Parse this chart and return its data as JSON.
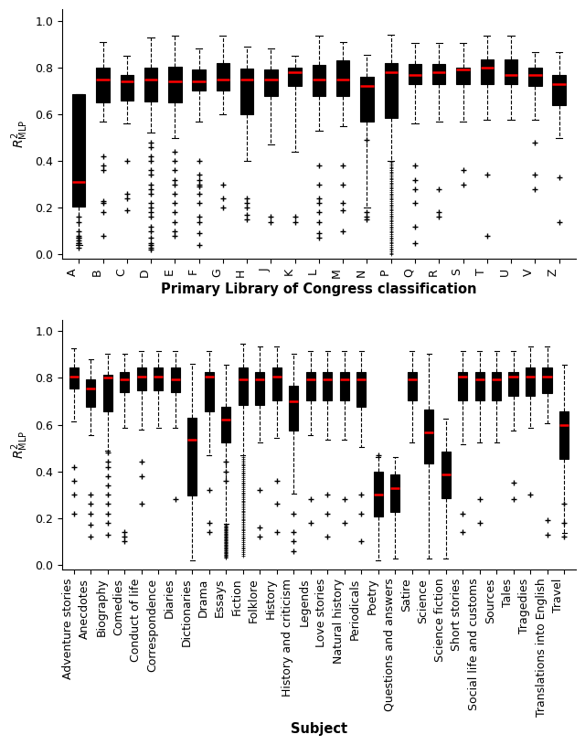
{
  "top_categories": [
    "A",
    "B",
    "C",
    "D",
    "E",
    "F",
    "G",
    "H",
    "J",
    "K",
    "L",
    "M",
    "N",
    "P",
    "Q",
    "R",
    "S",
    "T",
    "U",
    "V",
    "Z"
  ],
  "top_xlabel": "Primary Library of Congress classification",
  "top_ylabel": "$R^2_{\\mathrm{MLP}}$",
  "bottom_categories": [
    "Adventure stories",
    "Anecdotes",
    "Biography",
    "Comedies",
    "Conduct of life",
    "Correspondence",
    "Diaries",
    "Dictionaries",
    "Drama",
    "Essays",
    "Fiction",
    "Folklore",
    "History",
    "History and criticism",
    "Legends",
    "Love stories",
    "Natural history",
    "Periodicals",
    "Poetry",
    "Questions and answers",
    "Satire",
    "Science",
    "Science fiction",
    "Short stories",
    "Social life and customs",
    "Sources",
    "Tales",
    "Tragedies",
    "Translations into English",
    "Travel"
  ],
  "bottom_xlabel": "Subject",
  "bottom_ylabel": "$R^2_{\\mathrm{MLP}}$",
  "top_stats": [
    {
      "med": 0.31,
      "q1": 0.205,
      "q3": 0.685,
      "whislo": 0.04,
      "whishi": 0.685,
      "fliers": [
        0.03,
        0.05,
        0.06,
        0.07,
        0.08,
        0.07,
        0.05,
        0.1,
        0.14,
        0.16
      ]
    },
    {
      "med": 0.75,
      "q1": 0.65,
      "q3": 0.8,
      "whislo": 0.57,
      "whishi": 0.91,
      "fliers": [
        0.36,
        0.38,
        0.42,
        0.22,
        0.23,
        0.18,
        0.08
      ]
    },
    {
      "med": 0.74,
      "q1": 0.66,
      "q3": 0.77,
      "whislo": 0.56,
      "whishi": 0.85,
      "fliers": [
        0.4,
        0.26,
        0.19,
        0.24
      ]
    },
    {
      "med": 0.75,
      "q1": 0.655,
      "q3": 0.8,
      "whislo": 0.52,
      "whishi": 0.93,
      "fliers": [
        0.48,
        0.46,
        0.42,
        0.4,
        0.36,
        0.34,
        0.3,
        0.28,
        0.26,
        0.22,
        0.2,
        0.18,
        0.16,
        0.12,
        0.1,
        0.07,
        0.05,
        0.04,
        0.03,
        0.02
      ]
    },
    {
      "med": 0.74,
      "q1": 0.65,
      "q3": 0.805,
      "whislo": 0.5,
      "whishi": 0.935,
      "fliers": [
        0.44,
        0.4,
        0.36,
        0.32,
        0.3,
        0.26,
        0.22,
        0.18,
        0.14,
        0.1,
        0.08
      ]
    },
    {
      "med": 0.74,
      "q1": 0.7,
      "q3": 0.79,
      "whislo": 0.57,
      "whishi": 0.88,
      "fliers": [
        0.4,
        0.34,
        0.32,
        0.3,
        0.29,
        0.26,
        0.22,
        0.16,
        0.14,
        0.09,
        0.04
      ]
    },
    {
      "med": 0.75,
      "q1": 0.7,
      "q3": 0.82,
      "whislo": 0.6,
      "whishi": 0.935,
      "fliers": [
        0.3,
        0.24,
        0.2
      ]
    },
    {
      "med": 0.75,
      "q1": 0.6,
      "q3": 0.795,
      "whislo": 0.4,
      "whishi": 0.89,
      "fliers": [
        0.24,
        0.22,
        0.2,
        0.17,
        0.15
      ]
    },
    {
      "med": 0.75,
      "q1": 0.68,
      "q3": 0.79,
      "whislo": 0.47,
      "whishi": 0.88,
      "fliers": [
        0.16,
        0.14
      ]
    },
    {
      "med": 0.78,
      "q1": 0.72,
      "q3": 0.8,
      "whislo": 0.44,
      "whishi": 0.85,
      "fliers": [
        0.16,
        0.14
      ]
    },
    {
      "med": 0.75,
      "q1": 0.68,
      "q3": 0.81,
      "whislo": 0.53,
      "whishi": 0.935,
      "fliers": [
        0.38,
        0.3,
        0.24,
        0.22,
        0.18,
        0.14,
        0.09,
        0.07
      ]
    },
    {
      "med": 0.75,
      "q1": 0.68,
      "q3": 0.83,
      "whislo": 0.55,
      "whishi": 0.91,
      "fliers": [
        0.38,
        0.3,
        0.22,
        0.19,
        0.1
      ]
    },
    {
      "med": 0.72,
      "q1": 0.57,
      "q3": 0.76,
      "whislo": 0.2,
      "whishi": 0.855,
      "fliers": [
        0.18,
        0.16,
        0.15,
        0.49
      ]
    },
    {
      "med": 0.78,
      "q1": 0.585,
      "q3": 0.82,
      "whislo": 0.4,
      "whishi": 0.94,
      "fliers_dense": true,
      "fliers_min": 0.0,
      "fliers_max": 0.395,
      "fliers": []
    },
    {
      "med": 0.77,
      "q1": 0.73,
      "q3": 0.815,
      "whislo": 0.56,
      "whishi": 0.905,
      "fliers": [
        0.38,
        0.32,
        0.28,
        0.22,
        0.12,
        0.05
      ]
    },
    {
      "med": 0.78,
      "q1": 0.73,
      "q3": 0.815,
      "whislo": 0.57,
      "whishi": 0.905,
      "fliers": [
        0.28,
        0.18,
        0.16
      ]
    },
    {
      "med": 0.79,
      "q1": 0.73,
      "q3": 0.8,
      "whislo": 0.57,
      "whishi": 0.905,
      "fliers": [
        0.36,
        0.3
      ]
    },
    {
      "med": 0.8,
      "q1": 0.73,
      "q3": 0.835,
      "whislo": 0.575,
      "whishi": 0.935,
      "fliers": [
        0.34,
        0.08
      ]
    },
    {
      "med": 0.77,
      "q1": 0.73,
      "q3": 0.835,
      "whislo": 0.575,
      "whishi": 0.935,
      "fliers": []
    },
    {
      "med": 0.77,
      "q1": 0.72,
      "q3": 0.8,
      "whislo": 0.575,
      "whishi": 0.865,
      "fliers": [
        0.48,
        0.34,
        0.28
      ]
    },
    {
      "med": 0.73,
      "q1": 0.64,
      "q3": 0.77,
      "whislo": 0.5,
      "whishi": 0.865,
      "fliers": [
        0.33,
        0.14
      ]
    }
  ],
  "bottom_stats": [
    {
      "med": 0.805,
      "q1": 0.755,
      "q3": 0.845,
      "whislo": 0.615,
      "whishi": 0.925,
      "fliers": [
        0.42,
        0.36,
        0.3,
        0.22
      ]
    },
    {
      "med": 0.755,
      "q1": 0.675,
      "q3": 0.795,
      "whislo": 0.555,
      "whishi": 0.88,
      "fliers": [
        0.3,
        0.26,
        0.22,
        0.17,
        0.12
      ]
    },
    {
      "med": 0.8,
      "q1": 0.655,
      "q3": 0.815,
      "whislo": 0.49,
      "whishi": 0.905,
      "fliers": [
        0.48,
        0.44,
        0.42,
        0.38,
        0.34,
        0.3,
        0.26,
        0.22,
        0.18,
        0.13
      ]
    },
    {
      "med": 0.795,
      "q1": 0.74,
      "q3": 0.825,
      "whislo": 0.585,
      "whishi": 0.905,
      "fliers": [
        0.1,
        0.12,
        0.14
      ]
    },
    {
      "med": 0.805,
      "q1": 0.745,
      "q3": 0.845,
      "whislo": 0.58,
      "whishi": 0.915,
      "fliers": [
        0.44,
        0.38,
        0.26
      ]
    },
    {
      "med": 0.805,
      "q1": 0.745,
      "q3": 0.845,
      "whislo": 0.585,
      "whishi": 0.915,
      "fliers": []
    },
    {
      "med": 0.795,
      "q1": 0.74,
      "q3": 0.845,
      "whislo": 0.585,
      "whishi": 0.915,
      "fliers": [
        0.28
      ]
    },
    {
      "med": 0.535,
      "q1": 0.295,
      "q3": 0.63,
      "whislo": 0.02,
      "whishi": 0.86,
      "fliers": []
    },
    {
      "med": 0.805,
      "q1": 0.655,
      "q3": 0.825,
      "whislo": 0.47,
      "whishi": 0.915,
      "fliers": [
        0.32,
        0.18,
        0.14
      ]
    },
    {
      "med": 0.62,
      "q1": 0.525,
      "q3": 0.675,
      "whislo": 0.175,
      "whishi": 0.855,
      "fliers_dense": true,
      "fliers_min": 0.03,
      "fliers_max": 0.17,
      "fliers": [
        0.44,
        0.4,
        0.36
      ]
    },
    {
      "med": 0.795,
      "q1": 0.685,
      "q3": 0.845,
      "whislo": 0.47,
      "whishi": 0.945,
      "fliers_dense": true,
      "fliers_min": 0.04,
      "fliers_max": 0.46,
      "fliers": []
    },
    {
      "med": 0.795,
      "q1": 0.685,
      "q3": 0.825,
      "whislo": 0.525,
      "whishi": 0.935,
      "fliers": [
        0.32,
        0.16,
        0.12
      ]
    },
    {
      "med": 0.805,
      "q1": 0.705,
      "q3": 0.845,
      "whislo": 0.545,
      "whishi": 0.935,
      "fliers": [
        0.36,
        0.26,
        0.14
      ]
    },
    {
      "med": 0.7,
      "q1": 0.575,
      "q3": 0.765,
      "whislo": 0.305,
      "whishi": 0.905,
      "fliers": [
        0.22,
        0.14,
        0.1,
        0.06
      ]
    },
    {
      "med": 0.795,
      "q1": 0.705,
      "q3": 0.825,
      "whislo": 0.555,
      "whishi": 0.915,
      "fliers": [
        0.28,
        0.18
      ]
    },
    {
      "med": 0.795,
      "q1": 0.705,
      "q3": 0.825,
      "whislo": 0.535,
      "whishi": 0.915,
      "fliers": [
        0.3,
        0.22,
        0.12
      ]
    },
    {
      "med": 0.795,
      "q1": 0.705,
      "q3": 0.825,
      "whislo": 0.535,
      "whishi": 0.915,
      "fliers": [
        0.28,
        0.18
      ]
    },
    {
      "med": 0.795,
      "q1": 0.675,
      "q3": 0.825,
      "whislo": 0.505,
      "whishi": 0.915,
      "fliers": [
        0.3,
        0.22,
        0.1
      ]
    },
    {
      "med": 0.3,
      "q1": 0.205,
      "q3": 0.4,
      "whislo": 0.02,
      "whishi": 0.46,
      "fliers": [
        0.47
      ]
    },
    {
      "med": 0.33,
      "q1": 0.225,
      "q3": 0.385,
      "whislo": 0.025,
      "whishi": 0.46,
      "fliers": []
    },
    {
      "med": 0.795,
      "q1": 0.705,
      "q3": 0.825,
      "whislo": 0.525,
      "whishi": 0.915,
      "fliers": []
    },
    {
      "med": 0.565,
      "q1": 0.435,
      "q3": 0.665,
      "whislo": 0.025,
      "whishi": 0.905,
      "fliers": []
    },
    {
      "med": 0.385,
      "q1": 0.285,
      "q3": 0.485,
      "whislo": 0.025,
      "whishi": 0.625,
      "fliers": []
    },
    {
      "med": 0.805,
      "q1": 0.705,
      "q3": 0.825,
      "whislo": 0.515,
      "whishi": 0.915,
      "fliers": [
        0.22,
        0.14
      ]
    },
    {
      "med": 0.795,
      "q1": 0.705,
      "q3": 0.825,
      "whislo": 0.525,
      "whishi": 0.915,
      "fliers": [
        0.28,
        0.18
      ]
    },
    {
      "med": 0.795,
      "q1": 0.705,
      "q3": 0.825,
      "whislo": 0.525,
      "whishi": 0.915,
      "fliers": []
    },
    {
      "med": 0.805,
      "q1": 0.725,
      "q3": 0.825,
      "whislo": 0.575,
      "whishi": 0.915,
      "fliers": [
        0.35,
        0.28
      ]
    },
    {
      "med": 0.805,
      "q1": 0.725,
      "q3": 0.845,
      "whislo": 0.585,
      "whishi": 0.935,
      "fliers": [
        0.3
      ]
    },
    {
      "med": 0.805,
      "q1": 0.735,
      "q3": 0.845,
      "whislo": 0.605,
      "whishi": 0.935,
      "fliers": [
        0.19,
        0.13
      ]
    },
    {
      "med": 0.6,
      "q1": 0.455,
      "q3": 0.655,
      "whislo": 0.135,
      "whishi": 0.855,
      "fliers": [
        0.26,
        0.18,
        0.12
      ]
    }
  ],
  "box_facecolor": "#999999",
  "box_edgecolor": "#000000",
  "median_color": "#ff0000",
  "whisker_color": "#000000",
  "cap_color": "#000000",
  "flier_color": "#000000"
}
